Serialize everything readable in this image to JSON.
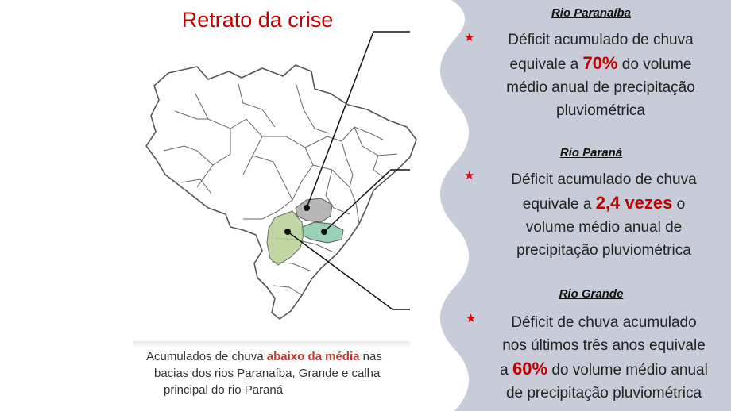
{
  "map": {
    "title": "Retrato da crise",
    "caption": {
      "line1_pre": "Acumulados de chuva ",
      "line1_highlight": "abaixo da média",
      "line1_post": " nas",
      "line2": "bacias dos rios Paranaíba, Grande e calha",
      "line3": "principal do rio Paraná"
    },
    "region_colors": {
      "paranaiba": "#a9a9a9",
      "grande": "#7fc5a3",
      "parana": "#b5cf93"
    }
  },
  "panel": {
    "background": "#c8ccd8",
    "blocks": [
      {
        "title": "Rio Paranaíba",
        "lines": [
          {
            "pre": "Déficit acumulado de chuva",
            "hl": "",
            "post": ""
          },
          {
            "pre": "equivale a ",
            "hl": "70%",
            "post": " do volume"
          },
          {
            "pre": "médio anual de precipitação",
            "hl": "",
            "post": ""
          },
          {
            "pre": "pluviométrica",
            "hl": "",
            "post": ""
          }
        ]
      },
      {
        "title": "Rio Paraná",
        "lines": [
          {
            "pre": "Déficit acumulado de chuva",
            "hl": "",
            "post": ""
          },
          {
            "pre": "equivale a ",
            "hl": "2,4 vezes",
            "post": " o"
          },
          {
            "pre": "volume médio anual de",
            "hl": "",
            "post": ""
          },
          {
            "pre": "precipitação pluviométrica",
            "hl": "",
            "post": ""
          }
        ]
      },
      {
        "title": "Rio Grande",
        "lines": [
          {
            "pre": "Déficit de chuva acumulado",
            "hl": "",
            "post": ""
          },
          {
            "pre": "nos últimos três anos equivale",
            "hl": "",
            "post": ""
          },
          {
            "pre": "a ",
            "hl": "60%",
            "post": " do volume médio anual"
          },
          {
            "pre": "de precipitação pluviométrica",
            "hl": "",
            "post": ""
          }
        ]
      }
    ]
  }
}
